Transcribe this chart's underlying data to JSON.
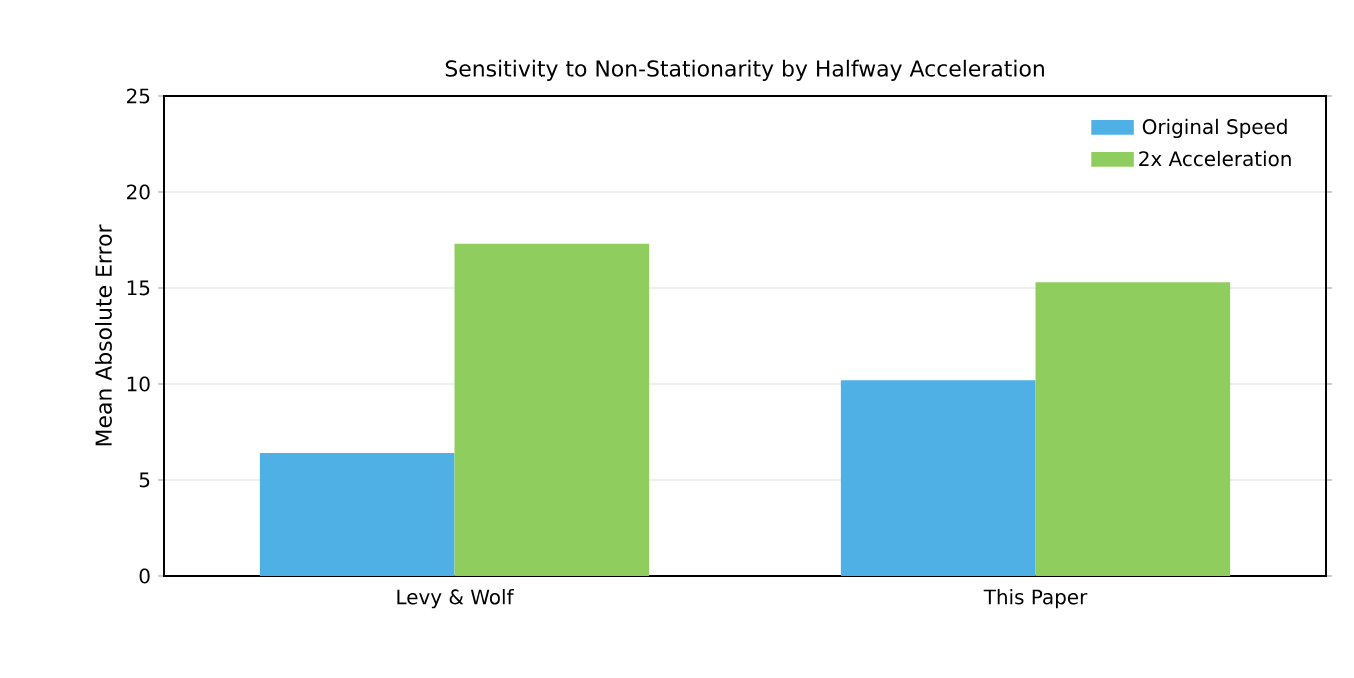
{
  "chart_data": {
    "type": "bar",
    "title": "Sensitivity to Non-Stationarity by Halfway Acceleration",
    "ylabel": "Mean Absolute Error",
    "categories": [
      "Levy & Wolf",
      "This Paper"
    ],
    "series": [
      {
        "name": "Original Speed",
        "color": "#4fb0e6",
        "values": [
          6.4,
          10.2
        ]
      },
      {
        "name": "2x Acceleration",
        "color": "#8fcd5f",
        "values": [
          17.3,
          15.3
        ]
      }
    ],
    "ylim": [
      0,
      25
    ],
    "yticks": [
      0,
      5,
      10,
      15,
      20,
      25
    ],
    "grid": "y",
    "legend": "top right"
  }
}
